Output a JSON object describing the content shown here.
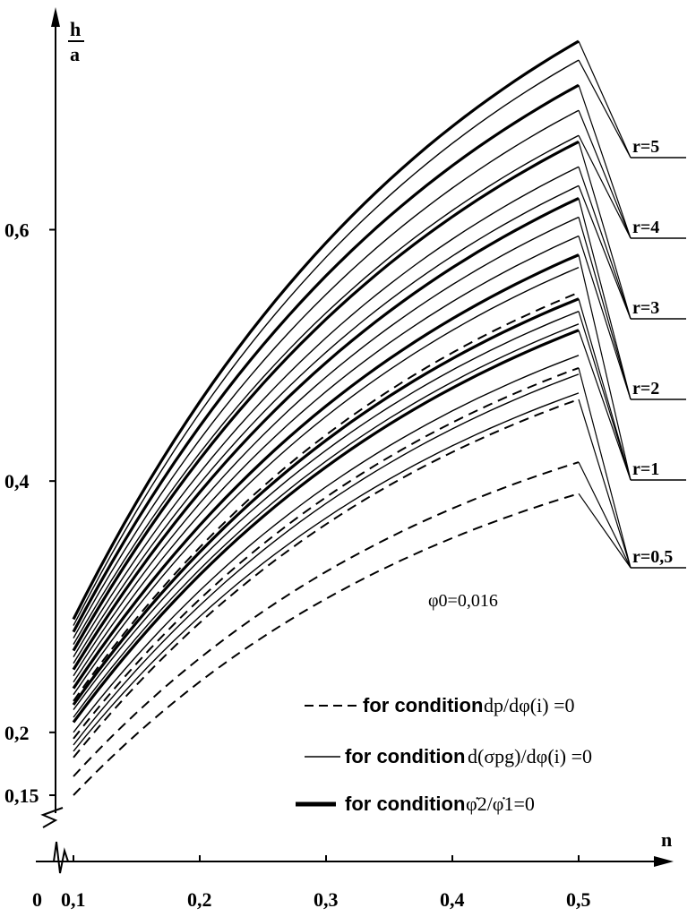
{
  "chart_data": {
    "type": "line",
    "ylabel_num": "h",
    "ylabel_den": "a",
    "xlabel": "n",
    "origin_label": "0",
    "x_ticks": [
      "0,1",
      "0,2",
      "0,3",
      "0,4",
      "0,5"
    ],
    "x_tick_values": [
      0.1,
      0.2,
      0.3,
      0.4,
      0.5
    ],
    "y_ticks": [
      "0,15",
      "0,2",
      "0,4",
      "0,6"
    ],
    "y_tick_values": [
      0.15,
      0.2,
      0.4,
      0.6
    ],
    "xlim": [
      0.1,
      0.5
    ],
    "ylim": [
      0.15,
      0.75
    ],
    "annotation": "φ0=0,016",
    "r_labels": [
      "r=5",
      "r=4",
      "r=3",
      "r=2",
      "r=1",
      "r=0,5"
    ],
    "legend": [
      {
        "style": "dashed",
        "prefix": "for condition",
        "formula": "dp/dφ(i) =0"
      },
      {
        "style": "thin",
        "prefix": "for condition",
        "formula": "d(σpg)/dφ(i) =0"
      },
      {
        "style": "thick",
        "prefix": "for condition",
        "formula": "φ̇2/φ̇1=0"
      }
    ],
    "series": [
      {
        "style": "thick",
        "values": [
          0.29,
          0.75
        ]
      },
      {
        "style": "thin",
        "values": [
          0.285,
          0.735
        ]
      },
      {
        "style": "thick",
        "values": [
          0.28,
          0.715
        ]
      },
      {
        "style": "thin",
        "values": [
          0.275,
          0.695
        ]
      },
      {
        "style": "thin",
        "values": [
          0.27,
          0.675
        ]
      },
      {
        "style": "thick",
        "values": [
          0.265,
          0.67
        ]
      },
      {
        "style": "thin",
        "values": [
          0.26,
          0.65
        ]
      },
      {
        "style": "thin",
        "values": [
          0.255,
          0.635
        ]
      },
      {
        "style": "thick",
        "values": [
          0.25,
          0.625
        ]
      },
      {
        "style": "thin",
        "values": [
          0.245,
          0.61
        ]
      },
      {
        "style": "thin",
        "values": [
          0.24,
          0.595
        ]
      },
      {
        "style": "thick",
        "values": [
          0.235,
          0.58
        ]
      },
      {
        "style": "thin",
        "values": [
          0.23,
          0.57
        ]
      },
      {
        "style": "dashed",
        "values": [
          0.225,
          0.55
        ]
      },
      {
        "style": "thick",
        "values": [
          0.222,
          0.545
        ]
      },
      {
        "style": "thin",
        "values": [
          0.218,
          0.535
        ]
      },
      {
        "style": "thin",
        "values": [
          0.212,
          0.525
        ]
      },
      {
        "style": "thick",
        "values": [
          0.208,
          0.52
        ]
      },
      {
        "style": "thin",
        "values": [
          0.2,
          0.5
        ]
      },
      {
        "style": "dashed",
        "values": [
          0.195,
          0.49
        ]
      },
      {
        "style": "thin",
        "values": [
          0.19,
          0.485
        ]
      },
      {
        "style": "thin",
        "values": [
          0.185,
          0.47
        ]
      },
      {
        "style": "dashed",
        "values": [
          0.18,
          0.465
        ]
      },
      {
        "style": "dashed",
        "values": [
          0.165,
          0.415
        ]
      },
      {
        "style": "dashed",
        "values": [
          0.15,
          0.39
        ]
      }
    ]
  }
}
